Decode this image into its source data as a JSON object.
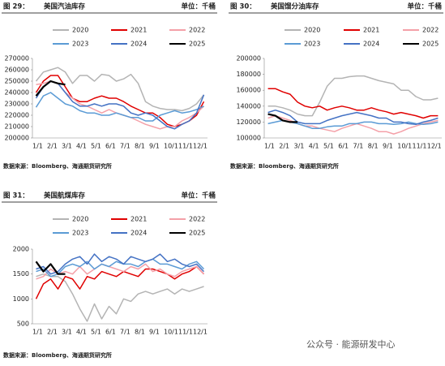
{
  "watermark": "公众号 · 能源研发中心",
  "chart_data": [
    {
      "type": "line",
      "figure_label": "图 29：",
      "title": "美国汽油库存",
      "unit": "单位：千桶",
      "source": "数据来源：Bloomberg、海通期货研究所",
      "categories": [
        "1/1",
        null,
        "2/1",
        null,
        "3/1",
        null,
        "4/1",
        null,
        "5/1",
        null,
        "6/1",
        null,
        "7/1",
        null,
        "8/1",
        null,
        "9/1",
        null,
        "10/1",
        null,
        "11/1",
        null,
        "12/1",
        null
      ],
      "ylim": [
        200000,
        270000
      ],
      "yticks": [
        200000,
        210000,
        220000,
        230000,
        240000,
        250000,
        260000,
        270000
      ],
      "series": [
        {
          "name": "2020",
          "color": "#b4b4b4",
          "values": [
            250000,
            258000,
            260000,
            262000,
            258000,
            248000,
            255000,
            255000,
            250000,
            256000,
            255000,
            250000,
            252000,
            256000,
            248000,
            232000,
            228000,
            226000,
            225000,
            225000,
            224000,
            226000,
            230000,
            238000
          ]
        },
        {
          "name": "2021",
          "color": "#e00000",
          "values": [
            240000,
            250000,
            255000,
            255000,
            245000,
            235000,
            232000,
            232000,
            235000,
            237000,
            235000,
            235000,
            232000,
            228000,
            225000,
            222000,
            222000,
            218000,
            212000,
            210000,
            212000,
            215000,
            220000,
            232000
          ]
        },
        {
          "name": "2022",
          "color": "#f4a0a8",
          "values": [
            247000,
            248000,
            250000,
            248000,
            240000,
            235000,
            230000,
            228000,
            225000,
            222000,
            225000,
            222000,
            220000,
            218000,
            215000,
            212000,
            210000,
            208000,
            210000,
            210000,
            215000,
            218000,
            222000,
            228000
          ]
        },
        {
          "name": "2023",
          "color": "#5b9bd5",
          "values": [
            227000,
            237000,
            240000,
            235000,
            230000,
            228000,
            224000,
            222000,
            222000,
            220000,
            220000,
            222000,
            220000,
            218000,
            218000,
            215000,
            215000,
            220000,
            222000,
            224000,
            222000,
            223000,
            225000,
            228000
          ]
        },
        {
          "name": "2024",
          "color": "#4472c4",
          "values": [
            235000,
            245000,
            250000,
            248000,
            240000,
            232000,
            228000,
            228000,
            230000,
            228000,
            230000,
            230000,
            228000,
            222000,
            220000,
            222000,
            220000,
            215000,
            210000,
            208000,
            212000,
            215000,
            222000,
            238000
          ]
        },
        {
          "name": "2025",
          "color": "#000000",
          "values": [
            237000,
            245000,
            250000,
            248000,
            247000,
            null,
            null,
            null,
            null,
            null,
            null,
            null,
            null,
            null,
            null,
            null,
            null,
            null,
            null,
            null,
            null,
            null,
            null,
            null
          ]
        }
      ]
    },
    {
      "type": "line",
      "figure_label": "图 30：",
      "title": "美国馏分油库存",
      "unit": "单位：千桶",
      "source": "数据来源：Bloomberg、海通期货研究所",
      "categories": [
        "1/1",
        null,
        "2/1",
        null,
        "3/1",
        null,
        "4/1",
        null,
        "5/1",
        null,
        "6/1",
        null,
        "7/1",
        null,
        "8/1",
        null,
        "9/1",
        null,
        "10/1",
        null,
        "11/1",
        null,
        "12/1",
        null
      ],
      "ylim": [
        100000,
        200000
      ],
      "yticks": [
        100000,
        120000,
        140000,
        160000,
        180000,
        200000
      ],
      "series": [
        {
          "name": "2020",
          "color": "#b4b4b4",
          "values": [
            140000,
            140000,
            138000,
            135000,
            130000,
            128000,
            128000,
            145000,
            165000,
            175000,
            175000,
            177000,
            178000,
            178000,
            175000,
            172000,
            170000,
            168000,
            160000,
            160000,
            152000,
            148000,
            148000,
            150000
          ]
        },
        {
          "name": "2021",
          "color": "#e00000",
          "values": [
            162000,
            162000,
            158000,
            155000,
            145000,
            140000,
            138000,
            140000,
            135000,
            138000,
            140000,
            138000,
            135000,
            135000,
            138000,
            135000,
            133000,
            130000,
            132000,
            130000,
            128000,
            125000,
            128000,
            128000
          ]
        },
        {
          "name": "2022",
          "color": "#f4a0a8",
          "values": [
            125000,
            128000,
            125000,
            122000,
            118000,
            115000,
            115000,
            112000,
            110000,
            108000,
            112000,
            115000,
            118000,
            115000,
            112000,
            108000,
            108000,
            105000,
            108000,
            112000,
            115000,
            118000,
            120000,
            122000
          ]
        },
        {
          "name": "2023",
          "color": "#5b9bd5",
          "values": [
            118000,
            120000,
            122000,
            120000,
            118000,
            115000,
            112000,
            112000,
            114000,
            115000,
            115000,
            118000,
            118000,
            120000,
            120000,
            118000,
            118000,
            117000,
            118000,
            120000,
            118000,
            117000,
            118000,
            120000
          ]
        },
        {
          "name": "2024",
          "color": "#4472c4",
          "values": [
            132000,
            135000,
            132000,
            128000,
            120000,
            118000,
            118000,
            118000,
            122000,
            125000,
            128000,
            130000,
            132000,
            130000,
            128000,
            125000,
            125000,
            120000,
            120000,
            118000,
            117000,
            120000,
            122000,
            125000
          ]
        },
        {
          "name": "2025",
          "color": "#000000",
          "values": [
            130000,
            128000,
            122000,
            120000,
            120000,
            null,
            null,
            null,
            null,
            null,
            null,
            null,
            null,
            null,
            null,
            null,
            null,
            null,
            null,
            null,
            null,
            null,
            null,
            null
          ]
        }
      ]
    },
    {
      "type": "line",
      "figure_label": "图 31：",
      "title": "美国航煤库存",
      "unit": "单位：千桶",
      "source": "数据来源：Bloomberg、海通期货研究所",
      "categories": [
        "1/1",
        null,
        "2/1",
        null,
        "3/1",
        null,
        "4/1",
        null,
        "5/1",
        null,
        "6/1",
        null,
        "7/1",
        null,
        "8/1",
        null,
        "9/1",
        null,
        "10/1",
        null,
        "11/1",
        null,
        "12/1",
        null
      ],
      "ylim": [
        500,
        2000
      ],
      "yticks": [
        500,
        1000,
        1500,
        2000
      ],
      "series": [
        {
          "name": "2020",
          "color": "#b4b4b4",
          "values": [
            1450,
            1500,
            1450,
            1450,
            1350,
            1100,
            800,
            550,
            900,
            600,
            850,
            700,
            1000,
            950,
            1100,
            1150,
            1100,
            1150,
            1200,
            1100,
            1200,
            1150,
            1200,
            1250
          ]
        },
        {
          "name": "2021",
          "color": "#e00000",
          "values": [
            1000,
            1300,
            1400,
            1200,
            1450,
            1400,
            1200,
            1450,
            1400,
            1550,
            1500,
            1450,
            1550,
            1500,
            1450,
            1600,
            1600,
            1550,
            1500,
            1400,
            1500,
            1550,
            1650,
            1500
          ]
        },
        {
          "name": "2022",
          "color": "#f4a0a8",
          "values": [
            1400,
            1450,
            1600,
            1500,
            1550,
            1500,
            1650,
            1500,
            1600,
            1700,
            1650,
            1600,
            1550,
            1650,
            1600,
            1700,
            1550,
            1600,
            1500,
            1450,
            1550,
            1600,
            1650,
            1500
          ]
        },
        {
          "name": "2023",
          "color": "#5b9bd5",
          "values": [
            1550,
            1600,
            1450,
            1500,
            1650,
            1700,
            1650,
            1750,
            1600,
            1700,
            1650,
            1750,
            1700,
            1700,
            1650,
            1750,
            1800,
            1700,
            1700,
            1650,
            1600,
            1700,
            1750,
            1600
          ]
        },
        {
          "name": "2024",
          "color": "#4472c4",
          "values": [
            1600,
            1650,
            1500,
            1550,
            1700,
            1800,
            1850,
            1700,
            1900,
            1750,
            1850,
            1800,
            1700,
            1850,
            1800,
            1750,
            1800,
            1900,
            1750,
            1800,
            1700,
            1650,
            1700,
            1550
          ]
        },
        {
          "name": "2025",
          "color": "#000000",
          "values": [
            1750,
            1550,
            1700,
            1500,
            1500,
            null,
            null,
            null,
            null,
            null,
            null,
            null,
            null,
            null,
            null,
            null,
            null,
            null,
            null,
            null,
            null,
            null,
            null,
            null
          ]
        }
      ]
    }
  ]
}
